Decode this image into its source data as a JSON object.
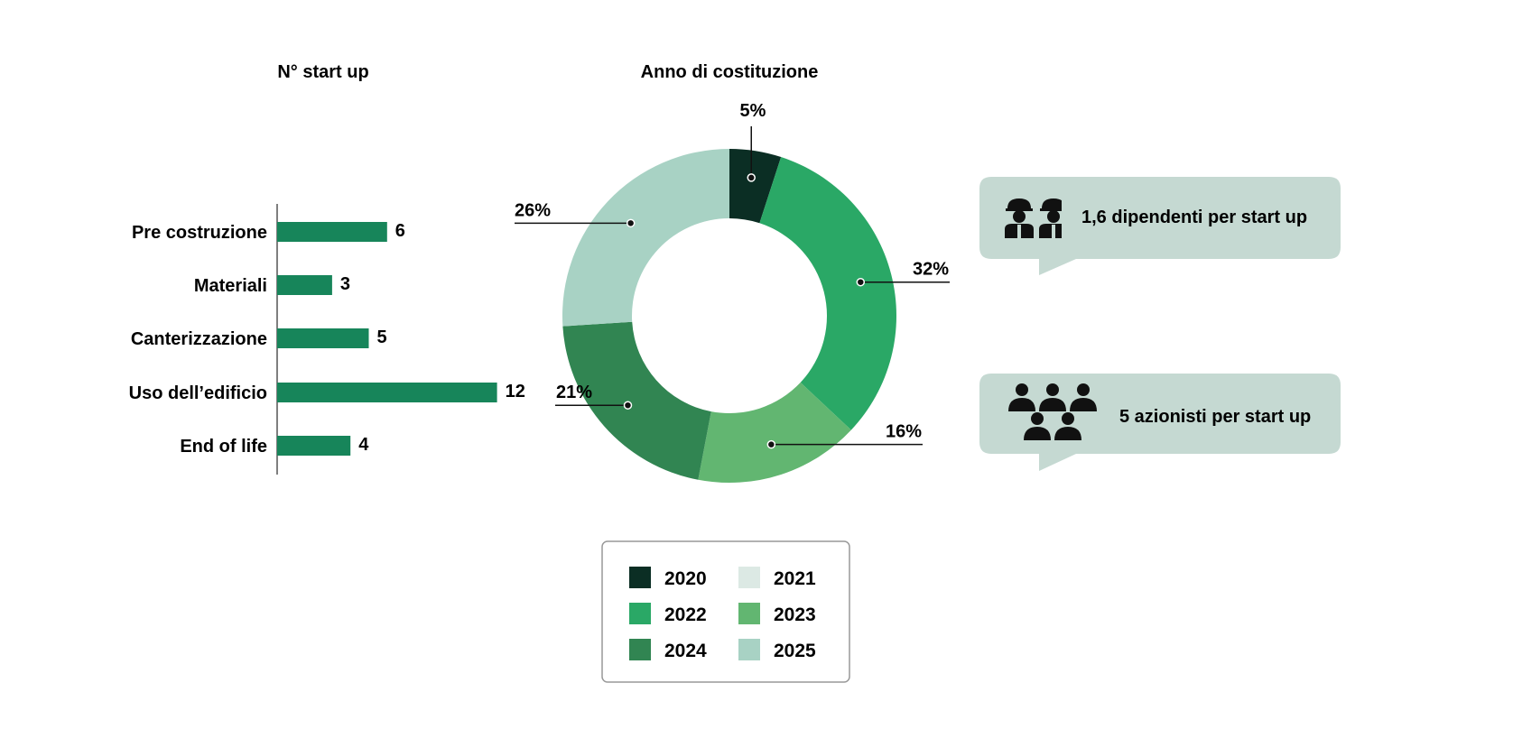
{
  "chart_data": [
    {
      "type": "bar",
      "orientation": "horizontal",
      "title": "N° start up",
      "categories": [
        "Pre costruzione",
        "Materiali",
        "Canterizzazione",
        "Uso dell’edificio",
        "End of life"
      ],
      "values": [
        6,
        3,
        5,
        12,
        4
      ],
      "value_labels": [
        "6",
        "3",
        "5",
        "12",
        "4"
      ],
      "color": "#17855a"
    },
    {
      "type": "pie",
      "donut": true,
      "title": "Anno di costituzione",
      "categories": [
        "2020",
        "2022",
        "2023",
        "2024",
        "2025"
      ],
      "values": [
        5,
        32,
        16,
        21,
        26
      ],
      "value_labels": [
        "5%",
        "32%",
        "16%",
        "21%",
        "26%"
      ],
      "colors": [
        "#0b2e24",
        "#2aa866",
        "#62b671",
        "#318552",
        "#a8d2c4"
      ]
    }
  ],
  "legend": [
    {
      "label": "2020",
      "color": "#0b2e24"
    },
    {
      "label": "2021",
      "color": "#dce9e4"
    },
    {
      "label": "2022",
      "color": "#2aa866"
    },
    {
      "label": "2023",
      "color": "#62b671"
    },
    {
      "label": "2024",
      "color": "#318552"
    },
    {
      "label": "2025",
      "color": "#a8d2c4"
    }
  ],
  "callouts": [
    {
      "icon": "construction-workers-icon",
      "text": "1,6 dipendenti per start up"
    },
    {
      "icon": "people-group-icon",
      "text": "5 azionisti per start up"
    }
  ],
  "colors": {
    "bubble": "#c5d9d2",
    "axis": "#555555",
    "leader": "#111111",
    "legend_border": "#999999"
  }
}
